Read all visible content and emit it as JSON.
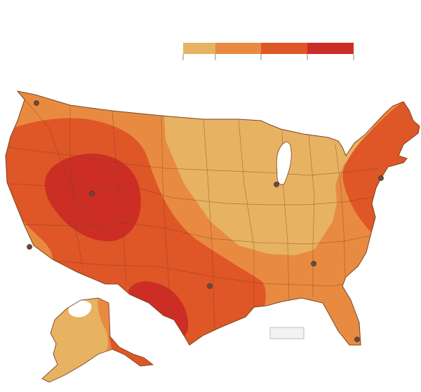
{
  "map": {
    "title": "",
    "legend": {
      "colors": [
        "#e8b263",
        "#e88b41",
        "#df5627",
        "#cc2e25"
      ],
      "labels": []
    },
    "palette": {
      "land_base": "#e8b263",
      "mid": "#e88b41",
      "high": "#df5627",
      "peak": "#cc2e25",
      "ice": "#ffffff",
      "borders": "#7a4420",
      "city_dot": "#6b4a3a"
    },
    "cities": [
      {
        "id": "seattle"
      },
      {
        "id": "san-francisco"
      },
      {
        "id": "salt-lake-city"
      },
      {
        "id": "dallas"
      },
      {
        "id": "chicago"
      },
      {
        "id": "atlanta"
      },
      {
        "id": "new-york"
      },
      {
        "id": "miami"
      }
    ]
  }
}
